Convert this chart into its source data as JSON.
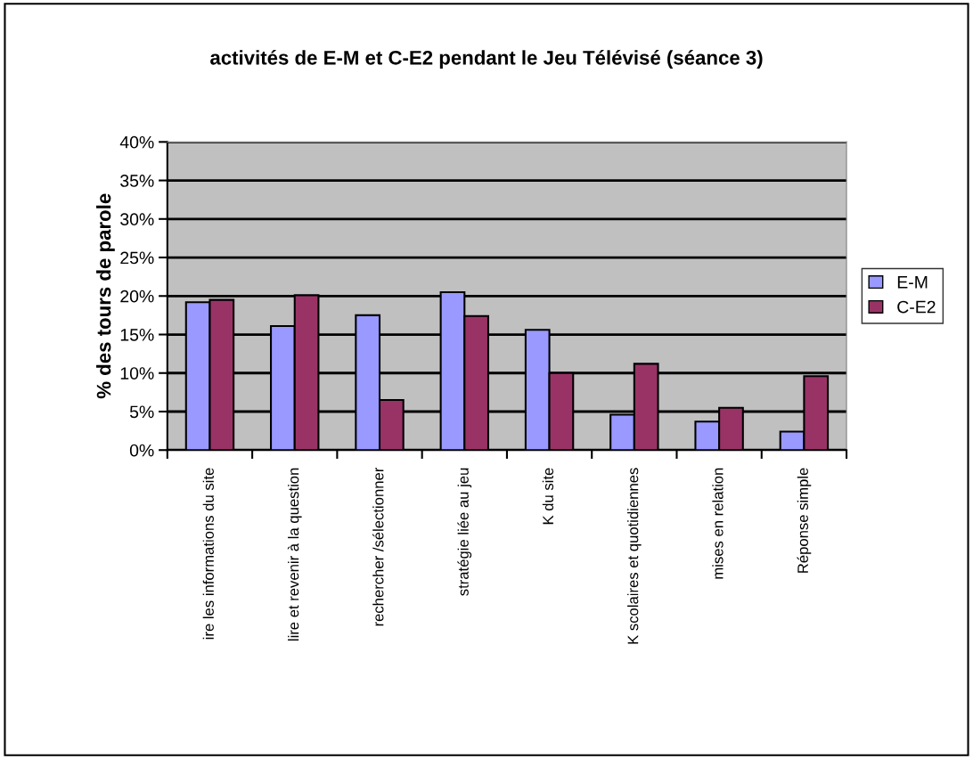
{
  "chart_data": {
    "type": "bar",
    "title": "activités de E-M et C-E2 pendant le Jeu Télévisé (séance 3)",
    "ylabel": "% des tours de parole",
    "categories": [
      "ire les informations du site",
      "lire et revenir à la question",
      "rechercher /sélectionner",
      "stratégie liée au jeu",
      "K du site",
      "K scolaires et quotidiennes",
      "mises en relation",
      "Réponse simple"
    ],
    "series": [
      {
        "name": "E-M",
        "color": "#9999ff",
        "values": [
          19.2,
          16.1,
          17.5,
          20.5,
          15.6,
          4.6,
          3.7,
          2.4
        ]
      },
      {
        "name": "C-E2",
        "color": "#993366",
        "values": [
          19.5,
          20.1,
          6.5,
          17.4,
          10.0,
          11.2,
          5.5,
          9.6
        ]
      }
    ],
    "ylim": [
      0,
      40
    ],
    "yticks": [
      {
        "value": 0,
        "label": "0%"
      },
      {
        "value": 5,
        "label": "5%"
      },
      {
        "value": 10,
        "label": "10%"
      },
      {
        "value": 15,
        "label": "15%"
      },
      {
        "value": 20,
        "label": "20%"
      },
      {
        "value": 25,
        "label": "25%"
      },
      {
        "value": 30,
        "label": "30%"
      },
      {
        "value": 35,
        "label": "35%"
      },
      {
        "value": 40,
        "label": "40%"
      }
    ],
    "grid": "y",
    "legend": "right"
  }
}
